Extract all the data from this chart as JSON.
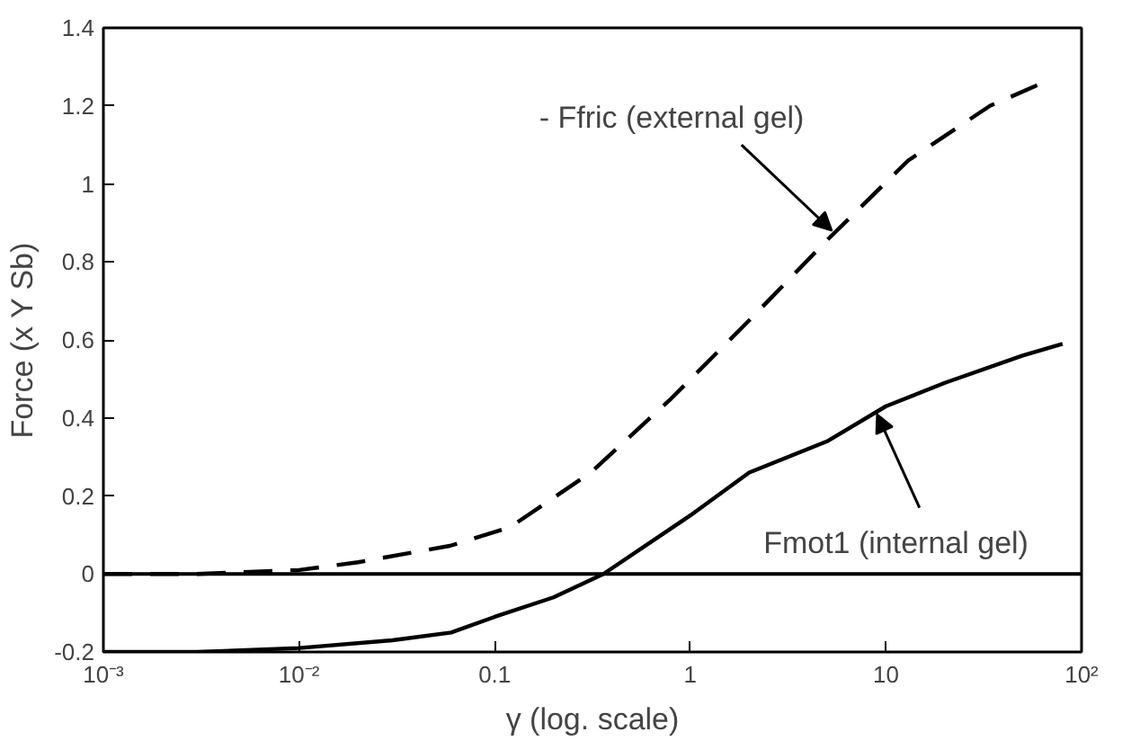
{
  "chart_data": {
    "type": "line",
    "xlabel": "γ (log. scale)",
    "ylabel": "Force (x Y Sb)",
    "log": "x",
    "grid": false,
    "xlim": [
      0.001,
      100
    ],
    "ylim": [
      -0.2,
      1.4
    ],
    "xticks": [
      {
        "value": 0.001,
        "label": "10⁻³"
      },
      {
        "value": 0.01,
        "label": "10⁻²"
      },
      0.1,
      1,
      10,
      {
        "value": 100,
        "label": "10²"
      }
    ],
    "yticks": [
      -0.2,
      0,
      0.2,
      0.4,
      0.6,
      0.8,
      1,
      1.2,
      1.4
    ],
    "series": [
      {
        "color": "#000000",
        "line_style": "dashed",
        "x": [
          0.001,
          0.003,
          0.01,
          0.02,
          0.059,
          0.12,
          0.31,
          0.8,
          2.0,
          5.1,
          13,
          34,
          64
        ],
        "values": [
          0.0,
          0.0,
          0.01,
          0.03,
          0.072,
          0.12,
          0.26,
          0.45,
          0.65,
          0.86,
          1.06,
          1.2,
          1.26
        ]
      },
      {
        "color": "#000000",
        "line_style": "solid",
        "x": [
          0.001,
          0.003,
          0.01,
          0.03,
          0.06,
          0.1,
          0.2,
          0.36,
          1,
          2,
          5,
          10,
          20,
          50,
          80
        ],
        "values": [
          -0.2,
          -0.2,
          -0.19,
          -0.17,
          -0.15,
          -0.11,
          -0.06,
          0.0,
          0.15,
          0.26,
          0.34,
          0.43,
          0.49,
          0.56,
          0.59
        ]
      }
    ],
    "ref_lines": [
      {
        "axis": "y",
        "value": 0,
        "color": "#000000"
      }
    ],
    "annotations": [
      {
        "text": "- Ffric (external gel)",
        "x": 5.3,
        "y": 0.88
      },
      {
        "text": "Fmot1 (internal gel)",
        "x": 9,
        "y": 0.41
      }
    ]
  }
}
